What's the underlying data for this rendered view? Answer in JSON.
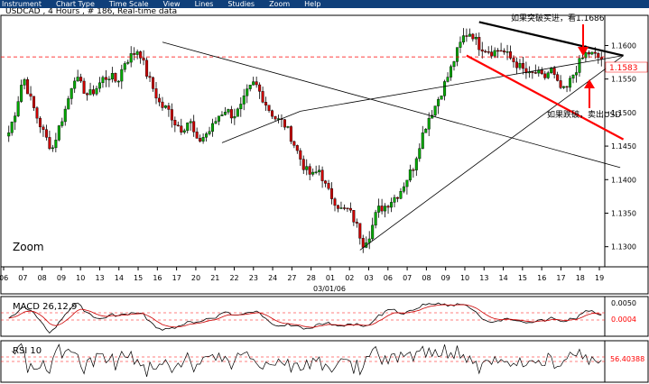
{
  "menu": {
    "items": [
      "Instrument",
      "Chart Type",
      "Time Scale",
      "View",
      "Lines",
      "Studies",
      "Zoom",
      "Help"
    ]
  },
  "chart_data": [
    {
      "type": "candlestick",
      "title": "USDCAD , 4 Hours , # 186, Real-time data",
      "zoom_label": "Zoom",
      "last_price_label": "1.1583",
      "ylim": [
        1.127,
        1.1645
      ],
      "yticks": [
        "1.1600",
        "1.1550",
        "1.1500",
        "1.1450",
        "1.1400",
        "1.1350",
        "1.1300"
      ],
      "x_ticks": [
        "06",
        "07",
        "08",
        "09",
        "10",
        "13",
        "14",
        "15",
        "16",
        "17",
        "20",
        "21",
        "22",
        "23",
        "24",
        "27",
        "28",
        "01",
        "02",
        "03",
        "06",
        "07",
        "08",
        "09",
        "10",
        "13",
        "14",
        "15",
        "16",
        "17",
        "18",
        "19"
      ],
      "x_sublabel": "03/01/06",
      "colors": {
        "up": "#00aa00",
        "down": "#cc0000",
        "line": "#000000",
        "annotation": "#ff0000",
        "background": "#ffffff"
      },
      "close_path": [
        1.147,
        1.1505,
        1.1555,
        1.152,
        1.149,
        1.1465,
        1.1445,
        1.148,
        1.151,
        1.1555,
        1.154,
        1.1525,
        1.1535,
        1.155,
        1.1555,
        1.1545,
        1.1575,
        1.1585,
        1.1595,
        1.156,
        1.1535,
        1.151,
        1.1505,
        1.1485,
        1.1475,
        1.149,
        1.1455,
        1.1465,
        1.1475,
        1.1495,
        1.1505,
        1.1495,
        1.1505,
        1.153,
        1.1545,
        1.1525,
        1.1505,
        1.149,
        1.1485,
        1.1465,
        1.144,
        1.1415,
        1.1405,
        1.1415,
        1.1385,
        1.137,
        1.1355,
        1.1355,
        1.1335,
        1.1305,
        1.132,
        1.1355,
        1.136,
        1.137,
        1.138,
        1.14,
        1.142,
        1.146,
        1.149,
        1.151,
        1.1535,
        1.156,
        1.159,
        1.1615,
        1.162,
        1.16,
        1.1595,
        1.159,
        1.1595,
        1.1585,
        1.1575,
        1.1565,
        1.1555,
        1.156,
        1.155,
        1.1565,
        1.154,
        1.153,
        1.1555,
        1.1575,
        1.159,
        1.1585,
        1.158
      ],
      "annotations": [
        {
          "text": "如果突破买进，看1.1686"
        },
        {
          "text": "如果跌破，卖出USD"
        }
      ]
    },
    {
      "type": "line",
      "title": "MACD 26,12,9",
      "value_labels": [
        "0.0050",
        "0.0004"
      ]
    },
    {
      "type": "line",
      "title": "RSI 10",
      "value_labels": [
        "56.40388"
      ]
    }
  ]
}
